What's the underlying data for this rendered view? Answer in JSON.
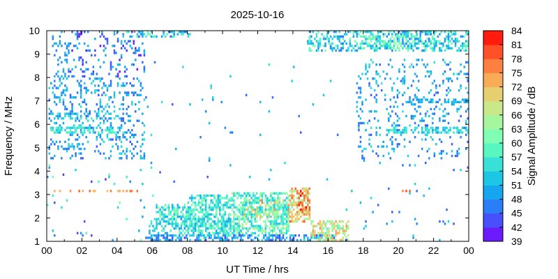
{
  "chart_data": {
    "type": "heatmap",
    "title": "2025-10-16",
    "xlabel": "UT Time / hrs",
    "ylabel": "Frequency / MHz",
    "xlim": [
      0,
      24
    ],
    "ylim": [
      1,
      10
    ],
    "x_ticks": [
      "00",
      "02",
      "04",
      "06",
      "08",
      "10",
      "12",
      "14",
      "16",
      "18",
      "20",
      "22",
      "00"
    ],
    "y_ticks": [
      "1",
      "2",
      "3",
      "4",
      "5",
      "6",
      "7",
      "8",
      "9",
      "10"
    ],
    "colorbar": {
      "label": "Signal Amplitude / dB",
      "range": [
        39,
        84
      ],
      "ticks": [
        "39",
        "42",
        "45",
        "48",
        "51",
        "54",
        "57",
        "60",
        "63",
        "66",
        "69",
        "72",
        "75",
        "78",
        "81",
        "84"
      ],
      "colormap": [
        "#7f00ff",
        "#4f44fc",
        "#2c7ef8",
        "#11b0ed",
        "#27d4e0",
        "#4ff4c6",
        "#80ffb4",
        "#b0f49a",
        "#d9e07c",
        "#f7b65e",
        "#ff8040",
        "#ff4422",
        "#ff0000"
      ]
    },
    "clusters": [
      {
        "x": [
          0.3,
          1.3
        ],
        "y": [
          8.0,
          10.0
        ],
        "db": [
          46,
          52
        ],
        "density": 0.22
      },
      {
        "x": [
          1.3,
          5.6
        ],
        "y": [
          8.0,
          10.0
        ],
        "db": [
          40,
          52
        ],
        "density": 0.16
      },
      {
        "x": [
          0.1,
          5.6
        ],
        "y": [
          4.5,
          8.0
        ],
        "db": [
          44,
          55
        ],
        "density": 0.2
      },
      {
        "x": [
          0.2,
          4.4
        ],
        "y": [
          5.6,
          5.9
        ],
        "db": [
          52,
          60
        ],
        "density": 0.5
      },
      {
        "x": [
          0.2,
          4.4
        ],
        "y": [
          6.2,
          6.5
        ],
        "db": [
          52,
          58
        ],
        "density": 0.35
      },
      {
        "x": [
          5.2,
          8.2
        ],
        "y": [
          9.7,
          10.0
        ],
        "db": [
          44,
          60
        ],
        "density": 0.5
      },
      {
        "x": [
          4.3,
          5.8
        ],
        "y": [
          9.7,
          10.0
        ],
        "db": [
          52,
          60
        ],
        "density": 0.4
      },
      {
        "x": [
          14.8,
          24.0
        ],
        "y": [
          9.1,
          10.0
        ],
        "db": [
          46,
          62
        ],
        "density": 0.45
      },
      {
        "x": [
          17.8,
          21.0
        ],
        "y": [
          9.2,
          9.8
        ],
        "db": [
          56,
          66
        ],
        "density": 0.45
      },
      {
        "x": [
          17.6,
          24.0
        ],
        "y": [
          4.5,
          8.8
        ],
        "db": [
          44,
          56
        ],
        "density": 0.14
      },
      {
        "x": [
          19.5,
          24.0
        ],
        "y": [
          5.6,
          5.9
        ],
        "db": [
          52,
          58
        ],
        "density": 0.55
      },
      {
        "x": [
          20.5,
          24.0
        ],
        "y": [
          6.9,
          7.1
        ],
        "db": [
          48,
          54
        ],
        "density": 0.45
      },
      {
        "x": [
          6.2,
          8.4
        ],
        "y": [
          1.7,
          2.6
        ],
        "db": [
          50,
          62
        ],
        "density": 0.55
      },
      {
        "x": [
          8.0,
          10.5
        ],
        "y": [
          1.3,
          3.0
        ],
        "db": [
          50,
          62
        ],
        "density": 0.55
      },
      {
        "x": [
          10.5,
          13.8
        ],
        "y": [
          1.3,
          3.1
        ],
        "db": [
          52,
          66
        ],
        "density": 0.6
      },
      {
        "x": [
          11.0,
          13.8
        ],
        "y": [
          2.0,
          2.8
        ],
        "db": [
          66,
          78
        ],
        "density": 0.45
      },
      {
        "x": [
          13.8,
          15.0
        ],
        "y": [
          1.8,
          3.3
        ],
        "db": [
          62,
          80
        ],
        "density": 0.6
      },
      {
        "x": [
          14.2,
          14.9
        ],
        "y": [
          2.2,
          3.2
        ],
        "db": [
          74,
          84
        ],
        "density": 0.55
      },
      {
        "x": [
          15.0,
          17.2
        ],
        "y": [
          1.0,
          1.9
        ],
        "db": [
          58,
          76
        ],
        "density": 0.55
      },
      {
        "x": [
          5.6,
          16.5
        ],
        "y": [
          1.0,
          1.25
        ],
        "db": [
          42,
          56
        ],
        "density": 0.5
      },
      {
        "x": [
          5.8,
          11.0
        ],
        "y": [
          1.2,
          2.0
        ],
        "db": [
          48,
          60
        ],
        "density": 0.4
      },
      {
        "x": [
          0.4,
          5.5
        ],
        "y": [
          3.1,
          3.2
        ],
        "db": [
          70,
          80
        ],
        "density": 0.4
      },
      {
        "x": [
          20.2,
          20.8
        ],
        "y": [
          3.1,
          3.2
        ],
        "db": [
          76,
          82
        ],
        "density": 0.6
      },
      {
        "x": [
          0.0,
          6.5
        ],
        "y": [
          1.0,
          4.5
        ],
        "db": [
          42,
          62
        ],
        "density": 0.02
      },
      {
        "x": [
          5.6,
          18.0
        ],
        "y": [
          3.5,
          9.0
        ],
        "db": [
          44,
          56
        ],
        "density": 0.006
      },
      {
        "x": [
          17.0,
          24.0
        ],
        "y": [
          1.0,
          4.5
        ],
        "db": [
          44,
          56
        ],
        "density": 0.02
      }
    ]
  }
}
